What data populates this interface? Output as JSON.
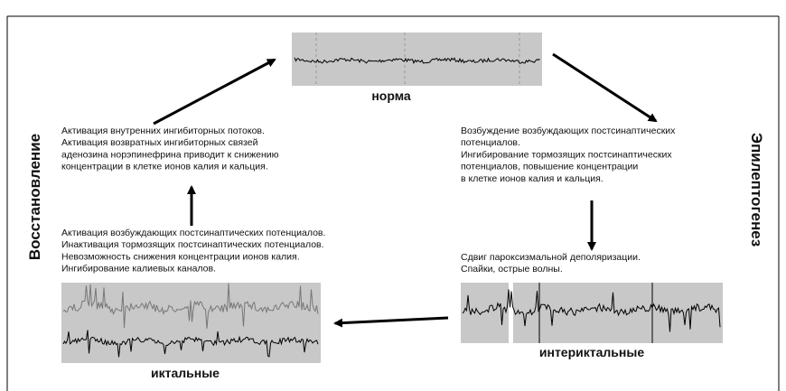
{
  "nodes": [
    {
      "label": "норма"
    },
    {
      "label": "интериктальные"
    },
    {
      "label": "иктальные"
    }
  ],
  "side_labels": {
    "left": "Восстановление",
    "right": "Эпилептогенез"
  },
  "blocks": [
    {
      "lines": [
        "Активация внутренних ингибиторных потоков.",
        "Активация возвратных ингибиторных связей",
        "аденозина норэпинефрина приводит к снижению",
        "концентрации в клетке ионов калия и кальция."
      ]
    },
    {
      "lines": [
        "Возбуждение возбуждающих постсинаптических",
        "потенциалов.",
        "Ингибирование тормозящих постсинаптических",
        "потенциалов, повышение концентрации",
        "в клетке ионов калия и кальция."
      ]
    },
    {
      "lines": [
        "Активация возбуждающих постсинаптических потенциалов.",
        "Инактивация тормозящих постсинаптических потенциалов.",
        "Невозможность снижения концентрации ионов калия.",
        "Ингибирование калиевых каналов."
      ]
    },
    {
      "lines": [
        "Сдвиг пароксизмальной деполяризации.",
        "Спайки, острые волны."
      ]
    }
  ]
}
